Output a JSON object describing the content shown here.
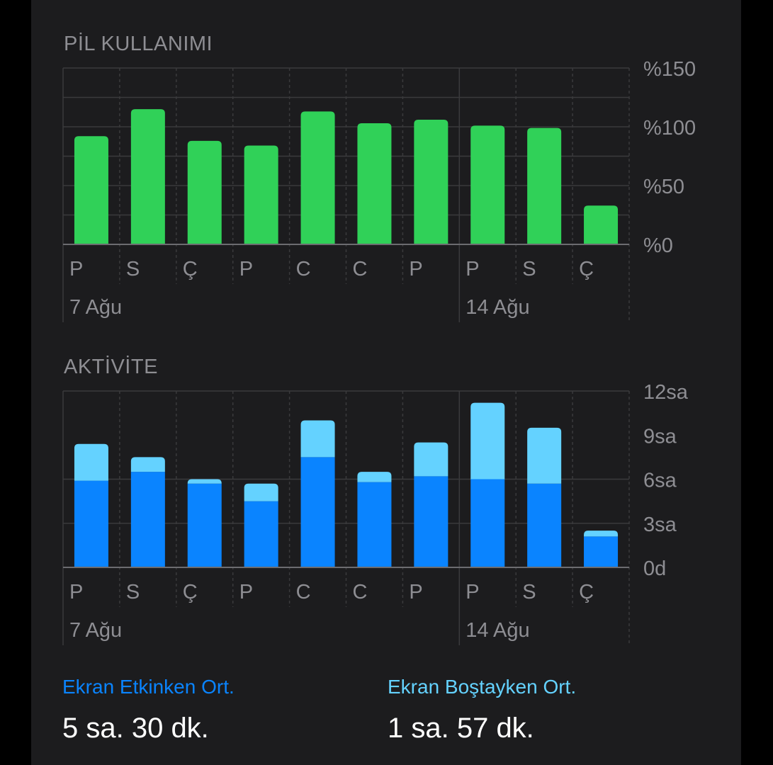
{
  "battery": {
    "title": "PİL KULLANIMI",
    "y_ticks": [
      "%150",
      "%100",
      "%50",
      "%0"
    ],
    "day_labels": [
      "P",
      "S",
      "Ç",
      "P",
      "C",
      "C",
      "P",
      "P",
      "S",
      "Ç"
    ],
    "week_labels": [
      "7 Ağu",
      "14 Ağu"
    ]
  },
  "activity": {
    "title": "AKTİVİTE",
    "y_ticks": [
      "12sa",
      "9sa",
      "6sa",
      "3sa",
      "0d"
    ],
    "day_labels": [
      "P",
      "S",
      "Ç",
      "P",
      "C",
      "C",
      "P",
      "P",
      "S",
      "Ç"
    ],
    "week_labels": [
      "7 Ağu",
      "14 Ağu"
    ]
  },
  "summary": {
    "active_label": "Ekran Etkinken Ort.",
    "active_value": "5 sa. 30 dk.",
    "idle_label": "Ekran Boştayken Ort.",
    "idle_value": "1 sa. 57 dk."
  },
  "colors": {
    "battery_bar": "#30d158",
    "active_bar": "#0a84ff",
    "idle_bar": "#64d2ff",
    "grid": "#3a3a3c",
    "axis_text": "#8e8e93"
  },
  "chart_data": [
    {
      "type": "bar",
      "title": "PİL KULLANIMI",
      "categories": [
        "P",
        "S",
        "Ç",
        "P",
        "C",
        "C",
        "P",
        "P",
        "S",
        "Ç"
      ],
      "values": [
        92,
        115,
        88,
        84,
        113,
        103,
        106,
        101,
        99,
        33
      ],
      "ylim": [
        0,
        150
      ],
      "y_ticks": [
        "%150",
        "%100",
        "%50",
        "%0"
      ],
      "grid": true
    },
    {
      "type": "bar",
      "title": "AKTİVİTE",
      "stacked": true,
      "categories": [
        "P",
        "S",
        "Ç",
        "P",
        "C",
        "C",
        "P",
        "P",
        "S",
        "Ç"
      ],
      "series": [
        {
          "values": [
            5.9,
            6.5,
            5.7,
            4.5,
            7.5,
            5.8,
            6.2,
            6.0,
            5.7,
            2.1
          ]
        },
        {
          "values": [
            2.5,
            1.0,
            0.3,
            1.2,
            2.5,
            0.7,
            2.3,
            5.2,
            3.8,
            0.4
          ]
        }
      ],
      "ylim": [
        0,
        12
      ],
      "y_ticks": [
        "12sa",
        "9sa",
        "6sa",
        "3sa",
        "0d"
      ],
      "grid": true
    }
  ]
}
